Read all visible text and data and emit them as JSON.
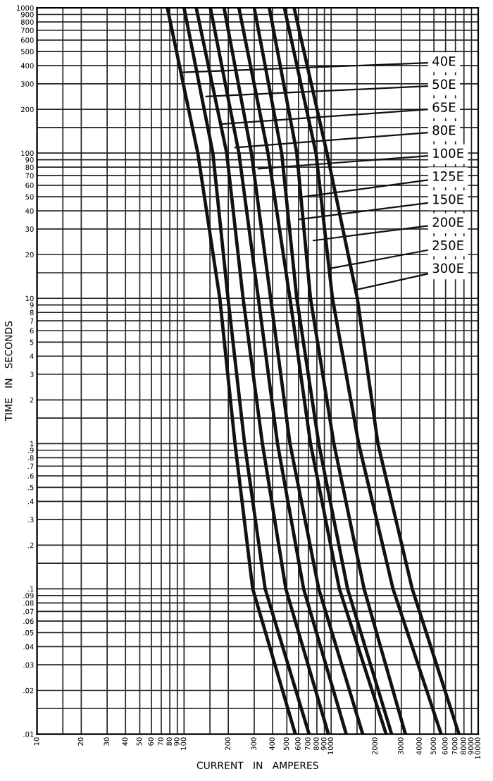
{
  "chart_data": {
    "type": "line",
    "xlabel": "CURRENT   IN   AMPERES",
    "ylabel": "TIME   IN   SECONDS",
    "log": "xy",
    "grid": true,
    "marker": "none",
    "line_style": "solid",
    "xlim": [
      10,
      10000
    ],
    "ylim": [
      0.01,
      1000
    ],
    "xticks": [
      10,
      {
        "value": 15,
        "label": null
      },
      20,
      30,
      40,
      50,
      60,
      70,
      80,
      90,
      100,
      {
        "value": 150,
        "label": null
      },
      200,
      300,
      400,
      500,
      600,
      700,
      800,
      900,
      1000,
      {
        "value": 1500,
        "label": null
      },
      2000,
      3000,
      4000,
      5000,
      6000,
      7000,
      8000,
      9000,
      10000
    ],
    "yticks": [
      {
        "value": 0.01,
        "label": ".01"
      },
      {
        "value": 0.015,
        "label": null
      },
      {
        "value": 0.02,
        "label": ".02"
      },
      {
        "value": 0.03,
        "label": ".03"
      },
      {
        "value": 0.04,
        "label": ".04"
      },
      {
        "value": 0.05,
        "label": ".05"
      },
      {
        "value": 0.06,
        "label": ".06"
      },
      {
        "value": 0.07,
        "label": ".07"
      },
      {
        "value": 0.08,
        "label": ".08"
      },
      {
        "value": 0.09,
        "label": ".09"
      },
      {
        "value": 0.1,
        "label": ".1"
      },
      {
        "value": 0.15,
        "label": null
      },
      {
        "value": 0.2,
        "label": ".2"
      },
      {
        "value": 0.3,
        "label": ".3"
      },
      {
        "value": 0.4,
        "label": ".4"
      },
      {
        "value": 0.5,
        "label": ".5"
      },
      {
        "value": 0.6,
        "label": ".6"
      },
      {
        "value": 0.7,
        "label": ".7"
      },
      {
        "value": 0.8,
        "label": ".8"
      },
      {
        "value": 0.9,
        "label": ".9"
      },
      1,
      {
        "value": 1.5,
        "label": null
      },
      2,
      3,
      4,
      5,
      6,
      7,
      8,
      9,
      10,
      {
        "value": 15,
        "label": null
      },
      20,
      30,
      40,
      50,
      60,
      70,
      80,
      90,
      100,
      {
        "value": 150,
        "label": null
      },
      200,
      300,
      400,
      500,
      600,
      700,
      800,
      900,
      1000
    ],
    "series": [
      {
        "color": "#111111",
        "x": [
          77,
          124,
          175,
          222,
          293,
          571
        ],
        "values": [
          1000,
          100,
          10,
          1,
          0.1,
          0.01
        ]
      },
      {
        "color": "#111111",
        "x": [
          100,
          157,
          199,
          258,
          356,
          708
        ],
        "values": [
          1000,
          100,
          10,
          1,
          0.1,
          0.01
        ]
      },
      {
        "color": "#111111",
        "x": [
          121,
          195,
          252,
          341,
          492,
          958
        ],
        "values": [
          1000,
          100,
          10,
          1,
          0.1,
          0.01
        ]
      },
      {
        "color": "#111111",
        "x": [
          151,
          236,
          320,
          432,
          650,
          1267
        ],
        "values": [
          1000,
          100,
          10,
          1,
          0.1,
          0.01
        ]
      },
      {
        "color": "#111111",
        "x": [
          187,
          287,
          388,
          525,
          824,
          1640
        ],
        "values": [
          1000,
          100,
          10,
          1,
          0.1,
          0.01
        ]
      },
      {
        "color": "#111111",
        "x": [
          236,
          372,
          525,
          724,
          1138,
          2366
        ],
        "values": [
          1000,
          100,
          10,
          1,
          0.1,
          0.01
        ]
      },
      {
        "color": "#111111",
        "x": [
          300,
          461,
          584,
          824,
          1294,
          2578
        ],
        "values": [
          1000,
          100,
          10,
          1,
          0.1,
          0.01
        ]
      },
      {
        "color": "#111111",
        "x": [
          380,
          584,
          724,
          1044,
          1675,
          3200
        ],
        "values": [
          1000,
          100,
          10,
          1,
          0.1,
          0.01
        ]
      },
      {
        "color": "#111111",
        "x": [
          481,
          789,
          1021,
          1539,
          2635,
          5597
        ],
        "values": [
          1000,
          100,
          10,
          1,
          0.1,
          0.01
        ]
      },
      {
        "color": "#111111",
        "x": [
          560,
          937,
          1507,
          2080,
          3560,
          7400
        ],
        "values": [
          1000,
          100,
          10,
          1,
          0.1,
          0.01
        ]
      }
    ],
    "annotations": [
      {
        "text": "40E",
        "x": 98,
        "y": 360
      },
      {
        "text": "50E",
        "x": 141,
        "y": 245
      },
      {
        "text": "65E",
        "x": 175,
        "y": 158
      },
      {
        "text": "80E",
        "x": 222,
        "y": 109
      },
      {
        "text": "100E",
        "x": 320,
        "y": 78
      },
      {
        "text": "125E",
        "x": 650,
        "y": 50
      },
      {
        "text": "150E",
        "x": 610,
        "y": 35
      },
      {
        "text": "200E",
        "x": 757,
        "y": 25
      },
      {
        "text": "250E",
        "x": 968,
        "y": 16
      },
      {
        "text": "300E",
        "x": 1507,
        "y": 11.5
      }
    ]
  }
}
